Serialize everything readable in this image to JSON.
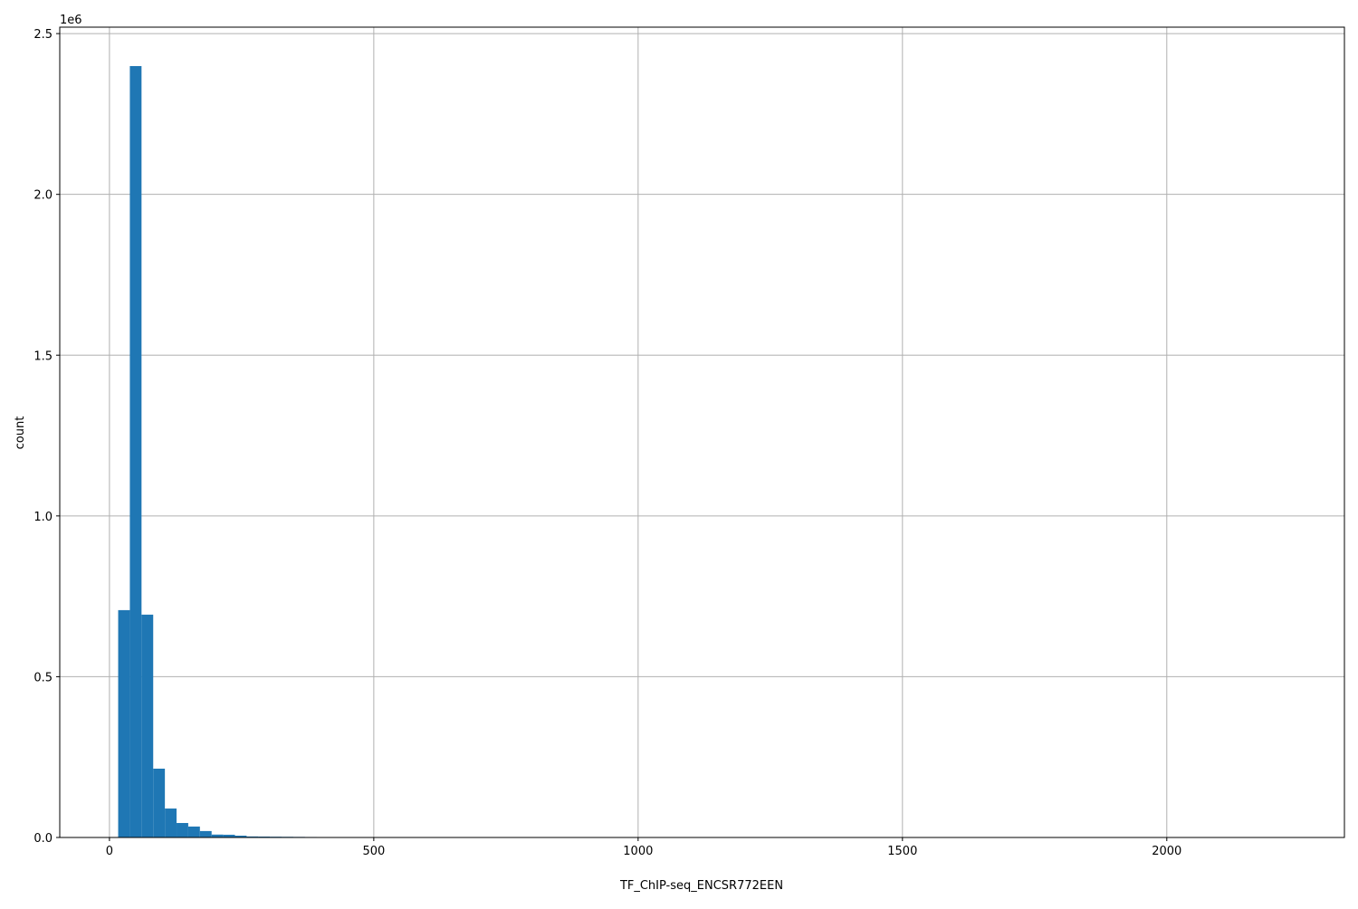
{
  "chart_data": {
    "type": "bar",
    "subtype": "histogram",
    "title": "",
    "xlabel": "TF_ChIP-seq_ENCSR772EEN",
    "ylabel": "count",
    "y_offset_label": "1e6",
    "xlim": [
      -94,
      2336
    ],
    "ylim": [
      0,
      2520000
    ],
    "x_ticks": [
      0,
      500,
      1000,
      1500,
      2000
    ],
    "x_tick_labels": [
      "0",
      "500",
      "1000",
      "1500",
      "2000"
    ],
    "y_ticks": [
      0,
      500000,
      1000000,
      1500000,
      2000000,
      2500000
    ],
    "y_tick_labels": [
      "0.0",
      "0.5",
      "1.0",
      "1.5",
      "2.0",
      "2.5"
    ],
    "grid": true,
    "color": "#1f77b4",
    "bin_start": 16.5,
    "bin_width": 22.09,
    "values": [
      707000,
      2399000,
      693000,
      214000,
      90000,
      45000,
      34000,
      20000,
      9000,
      8500,
      5600,
      3200,
      2800,
      2400,
      2100,
      1800,
      1500,
      900,
      700,
      500,
      400,
      300,
      250,
      200,
      150,
      120,
      100,
      80,
      60,
      50,
      40,
      30,
      25,
      20,
      15,
      12,
      10,
      8,
      6,
      5,
      4,
      3,
      3,
      2,
      2,
      2,
      1,
      1,
      1,
      1,
      1,
      1,
      1,
      1,
      0,
      0,
      0,
      0,
      0,
      0,
      0,
      0,
      0,
      0,
      0,
      0,
      0,
      0,
      0,
      0,
      0,
      0,
      0,
      0,
      0,
      0,
      0,
      0,
      0,
      0,
      0,
      0,
      0,
      0,
      0,
      0,
      0,
      0,
      0,
      0,
      0,
      0,
      0,
      0,
      0,
      0,
      0,
      0,
      0,
      1
    ]
  }
}
